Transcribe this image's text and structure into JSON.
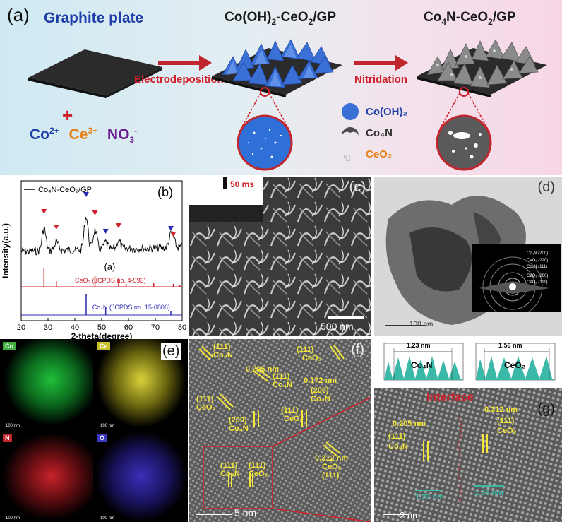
{
  "panel_a": {
    "label": "(a)",
    "graphite_title": "Graphite plate",
    "mid_title_html": "Co(OH)<sub>2</sub>-CeO<sub>2</sub>/GP",
    "right_title_html": "Co<sub>4</sub>N-CeO<sub>2</sub>/GP",
    "plus": "+",
    "ion_co": "Co",
    "ion_co_sup": "2+",
    "ion_ce": "Ce",
    "ion_ce_sup": "3+",
    "ion_no": "NO",
    "ion_no_sub": "3",
    "ion_no_sup": "-",
    "arrow1": "Electrodeposition",
    "arrow2": "Nitridation",
    "legend": {
      "cooh": "Co(OH)₂",
      "con": "Co₄N",
      "ceo": "CeO₂"
    },
    "colors": {
      "bg_left": "#cfe9f2",
      "bg_right": "#f7d6e6",
      "arrow": "#c0262c",
      "blue": "#1f3fa8",
      "orange": "#e8801a",
      "purple": "#6b1f8f",
      "red": "#d0202b"
    }
  },
  "panel_b": {
    "label": "(b)",
    "series_label": "Co₄N-CeO₂/GP",
    "curve_label": "(a)",
    "ref1": "CeO₂ (JCPDS no. 4-593)",
    "ref2": "Co₄N (JCPDS no. 15-0806)"
  },
  "chart_data": {
    "type": "line",
    "xlabel": "2-theta(degree)",
    "ylabel": "Intensity(a.u.)",
    "xlim": [
      20,
      80
    ],
    "xticks": [
      20,
      30,
      40,
      50,
      60,
      70,
      80
    ],
    "series": [
      {
        "name": "Co₄N-CeO₂/GP"
      }
    ],
    "ceo2_ref_peaks": [
      28.5,
      33.1,
      47.5,
      56.3,
      59.1,
      69.4,
      76.7,
      79.1
    ],
    "co4n_ref_peaks": [
      44.2,
      51.5,
      75.8
    ],
    "ceo2_markers": [
      28.5,
      33.1,
      47.5,
      56.3,
      76.7
    ],
    "co4n_markers": [
      44.2,
      51.5,
      75.8
    ]
  },
  "panel_c": {
    "label": "(c)",
    "inset": "50 ms",
    "scale": "500 nm"
  },
  "panel_d": {
    "label": "(d)",
    "scale": "100 nm",
    "rings": [
      "Co₄N (200)",
      "CeO₂ (220)",
      "Co₄N (111)",
      "CeO₂ (200)",
      "CeO₂ (111)"
    ]
  },
  "panel_e": {
    "label": "(e)",
    "maps": [
      {
        "el": "Co",
        "scale": "100 nm",
        "color": "#1fbf3a",
        "badge": "#3fae3f"
      },
      {
        "el": "Ce",
        "scale": "100 nm",
        "color": "#d8d23a",
        "badge": "#c9c02a"
      },
      {
        "el": "N",
        "scale": "100 nm",
        "color": "#c8222a",
        "badge": "#c0262c"
      },
      {
        "el": "O",
        "scale": "100 nm",
        "color": "#3a2fb8",
        "badge": "#3a3ac0"
      }
    ]
  },
  "panel_f": {
    "label": "(f)",
    "scale": "5 nm",
    "annotations": [
      "(111)",
      "Co₄N",
      "(111)",
      "CeO₂",
      "0.205 nm",
      "(111)",
      "Co₄N",
      "0.172 nm",
      "(200)",
      "Co₄N",
      "(111)",
      "CeO₂",
      "(200)",
      "Co₄N",
      "(111)",
      "CeO₂",
      "(111)",
      "Co₄N",
      "(111)",
      "CeO₂",
      "0.312 nm",
      "CeO₂",
      "(111)"
    ]
  },
  "panel_g": {
    "label": "(g)",
    "profile1_value": "1.23 nm",
    "profile1_name": "Co₄N",
    "profile2_value": "1.56 nm",
    "profile2_name": "CeO₂",
    "interface": "Interface",
    "d1": "0.205 nm",
    "h1": "(111)",
    "p1": "Co₄N",
    "d2": "0.312 nm",
    "h2": "(111)",
    "p2": "CeO₂",
    "m1": "1.23 nm",
    "m2": "1.56 nm",
    "scale": "2 nm"
  }
}
